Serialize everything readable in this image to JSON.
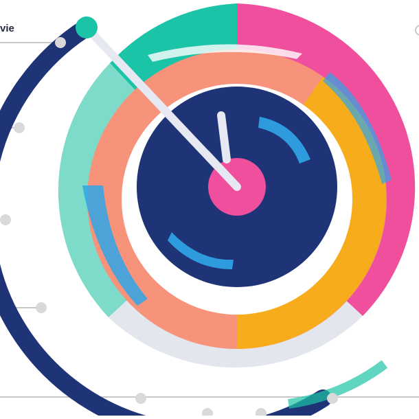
{
  "labels": {
    "top_left": "vie"
  },
  "colors": {
    "navy": "#1f3377",
    "teal": "#1cc4a7",
    "mint": "#7fdbc9",
    "pink": "#ef4f9c",
    "salmon": "#f7937a",
    "orange": "#f7ac1b",
    "gray": "#e4e6ee",
    "blue_speckle": "#2fa6e8",
    "needle": "#e7e9f2",
    "connector": "#c8c8c8"
  },
  "icons": {
    "needle_tip": "circle-knob",
    "center_hub": "pink-hub"
  }
}
